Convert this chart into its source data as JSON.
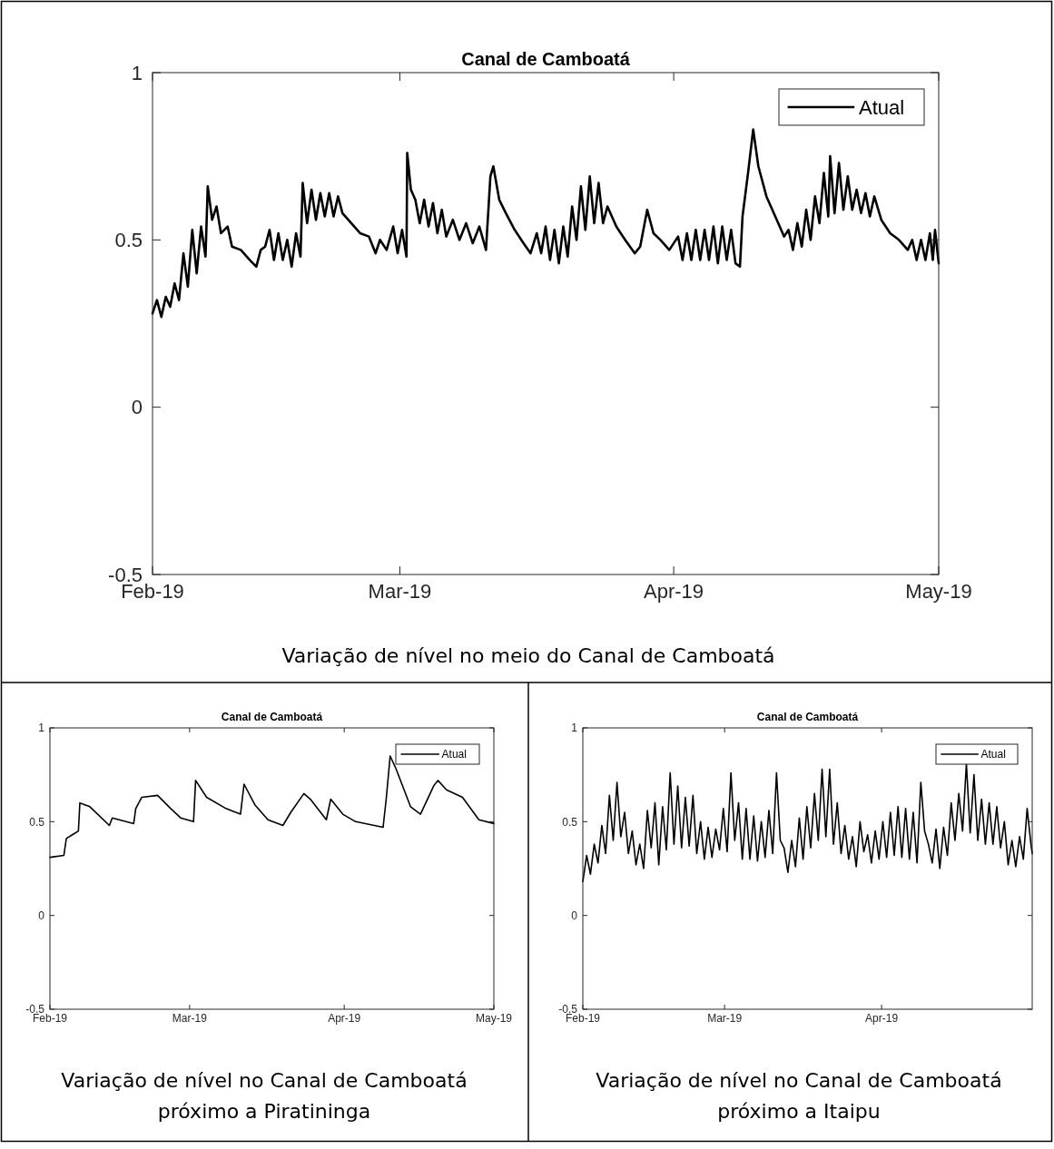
{
  "chart_data": [
    {
      "type": "line",
      "title": "Canal de Camboatá",
      "annotations": [
        "Variação de nível no meio do Canal de Camboatá"
      ],
      "xlim": [
        "2019-02-01",
        "2019-05-01"
      ],
      "xticks": [
        {
          "value": "2019-02-01",
          "label": "Feb-19"
        },
        {
          "value": "2019-03-01",
          "label": "Mar-19"
        },
        {
          "value": "2019-04-01",
          "label": "Apr-19"
        },
        {
          "value": "2019-05-01",
          "label": "May-19"
        }
      ],
      "ylim": [
        -0.5,
        1
      ],
      "yticks": [
        -0.5,
        0,
        0.5,
        1
      ],
      "legend": "top right",
      "series": [
        {
          "name": "Atual",
          "color": "#000000",
          "x": [
            "2019-02-01T00:00",
            "2019-02-01T12:00",
            "2019-02-02T00:00",
            "2019-02-02T12:00",
            "2019-02-03T00:00",
            "2019-02-03T12:00",
            "2019-02-04T00:00",
            "2019-02-04T12:00",
            "2019-02-05T00:00",
            "2019-02-05T12:00",
            "2019-02-06T00:00",
            "2019-02-06T12:00",
            "2019-02-07T00:00",
            "2019-02-07T06:00",
            "2019-02-07T18:00",
            "2019-02-08T06:00",
            "2019-02-08T18:00",
            "2019-02-09T12:00",
            "2019-02-10T00:00",
            "2019-02-11T00:00",
            "2019-02-12T00:00",
            "2019-02-12T18:00",
            "2019-02-13T06:00",
            "2019-02-13T18:00",
            "2019-02-14T06:00",
            "2019-02-14T18:00",
            "2019-02-15T06:00",
            "2019-02-15T18:00",
            "2019-02-16T06:00",
            "2019-02-16T18:00",
            "2019-02-17T06:00",
            "2019-02-17T18:00",
            "2019-02-18T00:00",
            "2019-02-18T12:00",
            "2019-02-19T00:00",
            "2019-02-19T12:00",
            "2019-02-20T00:00",
            "2019-02-20T12:00",
            "2019-02-21T00:00",
            "2019-02-21T12:00",
            "2019-02-22T00:00",
            "2019-02-22T12:00",
            "2019-02-23T12:00",
            "2019-02-24T12:00",
            "2019-02-25T12:00",
            "2019-02-26T06:00",
            "2019-02-26T18:00",
            "2019-02-27T12:00",
            "2019-02-28T06:00",
            "2019-02-28T18:00",
            "2019-03-01T06:00",
            "2019-03-01T18:00",
            "2019-03-01T20:00",
            "2019-03-02T06:00",
            "2019-03-02T18:00",
            "2019-03-03T06:00",
            "2019-03-03T18:00",
            "2019-03-04T06:00",
            "2019-03-04T18:00",
            "2019-03-05T06:00",
            "2019-03-05T18:00",
            "2019-03-06T06:00",
            "2019-03-07T00:00",
            "2019-03-07T18:00",
            "2019-03-08T12:00",
            "2019-03-09T06:00",
            "2019-03-10T00:00",
            "2019-03-10T18:00",
            "2019-03-11T06:00",
            "2019-03-11T14:00",
            "2019-03-12T06:00",
            "2019-03-13T00:00",
            "2019-03-14T00:00",
            "2019-03-15T00:00",
            "2019-03-15T19:00",
            "2019-03-16T12:00",
            "2019-03-17T00:00",
            "2019-03-17T12:00",
            "2019-03-18T00:00",
            "2019-03-18T12:00",
            "2019-03-19T00:00",
            "2019-03-19T12:00",
            "2019-03-20T00:00",
            "2019-03-20T12:00",
            "2019-03-21T00:00",
            "2019-03-21T12:00",
            "2019-03-22T00:00",
            "2019-03-22T12:00",
            "2019-03-23T00:00",
            "2019-03-23T12:00",
            "2019-03-24T00:00",
            "2019-03-24T12:00",
            "2019-03-25T12:00",
            "2019-03-26T12:00",
            "2019-03-27T14:00",
            "2019-03-28T05:00",
            "2019-03-29T00:00",
            "2019-03-29T17:00",
            "2019-03-30T12:00",
            "2019-03-31T12:00",
            "2019-04-01T12:00",
            "2019-04-02T00:00",
            "2019-04-02T12:00",
            "2019-04-03T00:00",
            "2019-04-03T12:00",
            "2019-04-04T00:00",
            "2019-04-04T12:00",
            "2019-04-05T00:00",
            "2019-04-05T12:00",
            "2019-04-06T00:00",
            "2019-04-06T12:00",
            "2019-04-07T00:00",
            "2019-04-07T12:00",
            "2019-04-08T00:00",
            "2019-04-08T12:00",
            "2019-04-08T19:00",
            "2019-04-09T10:00",
            "2019-04-10T00:00",
            "2019-04-10T14:00",
            "2019-04-11T12:00",
            "2019-04-12T12:00",
            "2019-04-13T12:00",
            "2019-04-14T00:00",
            "2019-04-14T12:00",
            "2019-04-15T00:00",
            "2019-04-15T12:00",
            "2019-04-16T00:00",
            "2019-04-16T12:00",
            "2019-04-17T00:00",
            "2019-04-17T12:00",
            "2019-04-18T00:00",
            "2019-04-18T12:00",
            "2019-04-18T17:00",
            "2019-04-19T05:00",
            "2019-04-19T17:00",
            "2019-04-20T05:00",
            "2019-04-20T17:00",
            "2019-04-21T05:00",
            "2019-04-21T17:00",
            "2019-04-22T05:00",
            "2019-04-22T17:00",
            "2019-04-23T05:00",
            "2019-04-23T17:00",
            "2019-04-24T12:00",
            "2019-04-25T12:00",
            "2019-04-26T12:00",
            "2019-04-27T12:00",
            "2019-04-28T00:00",
            "2019-04-28T12:00",
            "2019-04-29T00:00",
            "2019-04-29T12:00",
            "2019-04-30T00:00",
            "2019-04-30T08:00",
            "2019-04-30T14:00",
            "2019-05-01T00:00"
          ],
          "values": [
            0.28,
            0.32,
            0.27,
            0.33,
            0.3,
            0.37,
            0.32,
            0.46,
            0.36,
            0.53,
            0.4,
            0.54,
            0.45,
            0.66,
            0.56,
            0.6,
            0.52,
            0.54,
            0.48,
            0.47,
            0.44,
            0.42,
            0.47,
            0.48,
            0.53,
            0.44,
            0.52,
            0.44,
            0.5,
            0.42,
            0.52,
            0.45,
            0.67,
            0.55,
            0.65,
            0.56,
            0.64,
            0.57,
            0.64,
            0.57,
            0.63,
            0.58,
            0.55,
            0.52,
            0.51,
            0.46,
            0.5,
            0.47,
            0.54,
            0.46,
            0.53,
            0.45,
            0.76,
            0.65,
            0.62,
            0.55,
            0.62,
            0.54,
            0.61,
            0.52,
            0.59,
            0.51,
            0.56,
            0.5,
            0.55,
            0.49,
            0.54,
            0.47,
            0.69,
            0.72,
            0.62,
            0.58,
            0.53,
            0.49,
            0.46,
            0.52,
            0.46,
            0.54,
            0.44,
            0.53,
            0.43,
            0.54,
            0.45,
            0.6,
            0.5,
            0.66,
            0.53,
            0.69,
            0.55,
            0.67,
            0.55,
            0.6,
            0.54,
            0.5,
            0.46,
            0.48,
            0.59,
            0.52,
            0.5,
            0.47,
            0.51,
            0.44,
            0.52,
            0.44,
            0.53,
            0.44,
            0.53,
            0.44,
            0.54,
            0.43,
            0.54,
            0.44,
            0.53,
            0.43,
            0.42,
            0.57,
            0.7,
            0.83,
            0.72,
            0.63,
            0.57,
            0.51,
            0.53,
            0.47,
            0.55,
            0.48,
            0.59,
            0.5,
            0.63,
            0.55,
            0.7,
            0.57,
            0.75,
            0.58,
            0.73,
            0.59,
            0.69,
            0.59,
            0.65,
            0.58,
            0.64,
            0.57,
            0.63,
            0.56,
            0.52,
            0.5,
            0.47,
            0.5,
            0.44,
            0.5,
            0.44,
            0.52,
            0.44,
            0.53,
            0.43
          ]
        }
      ]
    },
    {
      "type": "line",
      "title": "Canal de Camboatá",
      "annotations": [
        "Variação de nível no Canal de Camboatá próximo a Piratininga"
      ],
      "xlim": [
        "2019-02-01",
        "2019-05-01"
      ],
      "xticks": [
        {
          "value": "2019-02-01",
          "label": "Feb-19"
        },
        {
          "value": "2019-03-01",
          "label": "Mar-19"
        },
        {
          "value": "2019-04-01",
          "label": "Apr-19"
        },
        {
          "value": "2019-05-01",
          "label": "May-19"
        }
      ],
      "ylim": [
        -0.5,
        1
      ],
      "yticks": [
        -0.5,
        0,
        0.5,
        1
      ],
      "legend": "top right",
      "series": [
        {
          "name": "Atual",
          "color": "#000000",
          "x": [
            "2019-02-01T00:00",
            "2019-02-03T19:00",
            "2019-02-04T07:00",
            "2019-02-05T12:00",
            "2019-02-06T17:00",
            "2019-02-07T00:00",
            "2019-02-09T00:00",
            "2019-02-12T22:00",
            "2019-02-13T12:00",
            "2019-02-17T19:00",
            "2019-02-18T05:00",
            "2019-02-19T10:00",
            "2019-02-22T14:00",
            "2019-02-25T05:00",
            "2019-02-27T05:00",
            "2019-03-01T19:00",
            "2019-03-02T05:00",
            "2019-03-04T10:00",
            "2019-03-08T07:00",
            "2019-03-11T05:00",
            "2019-03-11T22:00",
            "2019-03-14T02:00",
            "2019-03-16T17:00",
            "2019-03-19T17:00",
            "2019-03-21T07:00",
            "2019-03-23T22:00",
            "2019-03-25T05:00",
            "2019-03-28T10:00",
            "2019-03-29T07:00",
            "2019-03-31T17:00",
            "2019-04-03T07:00",
            "2019-04-08T19:00",
            "2019-04-09T10:00",
            "2019-04-10T05:00",
            "2019-04-11T10:00",
            "2019-04-14T07:00",
            "2019-04-16T07:00",
            "2019-04-18T22:00",
            "2019-04-19T19:00",
            "2019-04-21T12:00",
            "2019-04-24T17:00",
            "2019-04-28T00:00",
            "2019-05-01T00:00"
          ],
          "values": [
            0.31,
            0.32,
            0.41,
            0.43,
            0.45,
            0.6,
            0.58,
            0.48,
            0.52,
            0.49,
            0.57,
            0.63,
            0.64,
            0.57,
            0.52,
            0.5,
            0.72,
            0.63,
            0.57,
            0.54,
            0.7,
            0.59,
            0.51,
            0.48,
            0.55,
            0.65,
            0.62,
            0.51,
            0.62,
            0.54,
            0.5,
            0.47,
            0.62,
            0.85,
            0.78,
            0.58,
            0.54,
            0.69,
            0.72,
            0.67,
            0.63,
            0.51,
            0.49
          ]
        }
      ]
    },
    {
      "type": "line",
      "title": "Canal de Camboatá",
      "annotations": [
        "Variação de nível no Canal de Camboatá próximo a Itaipu"
      ],
      "xlim": [
        "2019-02-01",
        "2019-04-30T18:00"
      ],
      "xticks": [
        {
          "value": "2019-02-01",
          "label": "Feb-19"
        },
        {
          "value": "2019-03-01",
          "label": "Mar-19"
        },
        {
          "value": "2019-04-01",
          "label": "Apr-19"
        }
      ],
      "ylim": [
        -0.5,
        1
      ],
      "yticks": [
        -0.5,
        0,
        0.5,
        1
      ],
      "legend": "top right",
      "series": [
        {
          "name": "Atual",
          "color": "#000000",
          "x": [
            "2019-02-01T00:00",
            "2019-02-01T18:00",
            "2019-02-02T12:00",
            "2019-02-03T06:00",
            "2019-02-04T00:00",
            "2019-02-04T18:00",
            "2019-02-05T12:00",
            "2019-02-06T06:00",
            "2019-02-07T00:00",
            "2019-02-07T18:00",
            "2019-02-08T12:00",
            "2019-02-09T06:00",
            "2019-02-10T00:00",
            "2019-02-10T18:00",
            "2019-02-11T12:00",
            "2019-02-12T06:00",
            "2019-02-13T00:00",
            "2019-02-13T18:00",
            "2019-02-14T12:00",
            "2019-02-15T06:00",
            "2019-02-16T00:00",
            "2019-02-16T18:00",
            "2019-02-17T12:00",
            "2019-02-18T06:00",
            "2019-02-19T00:00",
            "2019-02-19T18:00",
            "2019-02-20T12:00",
            "2019-02-21T06:00",
            "2019-02-22T00:00",
            "2019-02-22T18:00",
            "2019-02-23T12:00",
            "2019-02-24T06:00",
            "2019-02-25T00:00",
            "2019-02-25T18:00",
            "2019-02-26T12:00",
            "2019-02-27T06:00",
            "2019-02-28T00:00",
            "2019-02-28T18:00",
            "2019-03-01T12:00",
            "2019-03-02T06:00",
            "2019-03-03T00:00",
            "2019-03-03T18:00",
            "2019-03-04T12:00",
            "2019-03-05T06:00",
            "2019-03-06T00:00",
            "2019-03-06T18:00",
            "2019-03-07T12:00",
            "2019-03-08T06:00",
            "2019-03-09T00:00",
            "2019-03-09T18:00",
            "2019-03-10T12:00",
            "2019-03-11T06:00",
            "2019-03-12T00:00",
            "2019-03-12T18:00",
            "2019-03-13T12:00",
            "2019-03-14T06:00",
            "2019-03-15T00:00",
            "2019-03-15T18:00",
            "2019-03-16T12:00",
            "2019-03-17T06:00",
            "2019-03-18T00:00",
            "2019-03-18T18:00",
            "2019-03-19T12:00",
            "2019-03-20T06:00",
            "2019-03-21T00:00",
            "2019-03-21T18:00",
            "2019-03-22T12:00",
            "2019-03-23T06:00",
            "2019-03-24T00:00",
            "2019-03-24T18:00",
            "2019-03-25T12:00",
            "2019-03-26T06:00",
            "2019-03-27T00:00",
            "2019-03-27T18:00",
            "2019-03-28T12:00",
            "2019-03-29T06:00",
            "2019-03-30T00:00",
            "2019-03-30T18:00",
            "2019-03-31T12:00",
            "2019-04-01T06:00",
            "2019-04-02T00:00",
            "2019-04-02T18:00",
            "2019-04-03T12:00",
            "2019-04-04T06:00",
            "2019-04-05T00:00",
            "2019-04-05T18:00",
            "2019-04-06T12:00",
            "2019-04-07T06:00",
            "2019-04-08T00:00",
            "2019-04-08T18:00",
            "2019-04-09T12:00",
            "2019-04-10T06:00",
            "2019-04-11T00:00",
            "2019-04-11T18:00",
            "2019-04-12T12:00",
            "2019-04-13T06:00",
            "2019-04-14T00:00",
            "2019-04-14T18:00",
            "2019-04-15T12:00",
            "2019-04-16T06:00",
            "2019-04-17T00:00",
            "2019-04-17T18:00",
            "2019-04-18T12:00",
            "2019-04-19T06:00",
            "2019-04-20T00:00",
            "2019-04-20T18:00",
            "2019-04-21T12:00",
            "2019-04-22T06:00",
            "2019-04-23T00:00",
            "2019-04-23T18:00",
            "2019-04-24T12:00",
            "2019-04-25T06:00",
            "2019-04-26T00:00",
            "2019-04-26T18:00",
            "2019-04-27T12:00",
            "2019-04-28T06:00",
            "2019-04-29T00:00",
            "2019-04-29T18:00",
            "2019-04-30T12:00",
            "2019-04-30T18:00"
          ],
          "values": [
            0.18,
            0.32,
            0.22,
            0.38,
            0.28,
            0.48,
            0.33,
            0.64,
            0.4,
            0.71,
            0.42,
            0.55,
            0.33,
            0.45,
            0.27,
            0.38,
            0.25,
            0.56,
            0.36,
            0.6,
            0.27,
            0.58,
            0.35,
            0.76,
            0.38,
            0.69,
            0.36,
            0.63,
            0.37,
            0.64,
            0.33,
            0.5,
            0.3,
            0.47,
            0.31,
            0.46,
            0.35,
            0.57,
            0.34,
            0.76,
            0.4,
            0.6,
            0.3,
            0.57,
            0.3,
            0.53,
            0.29,
            0.5,
            0.31,
            0.56,
            0.33,
            0.76,
            0.4,
            0.36,
            0.23,
            0.4,
            0.26,
            0.52,
            0.3,
            0.58,
            0.36,
            0.65,
            0.4,
            0.78,
            0.42,
            0.78,
            0.38,
            0.6,
            0.33,
            0.48,
            0.3,
            0.42,
            0.26,
            0.5,
            0.34,
            0.43,
            0.28,
            0.45,
            0.3,
            0.5,
            0.31,
            0.55,
            0.32,
            0.58,
            0.31,
            0.57,
            0.3,
            0.55,
            0.28,
            0.71,
            0.45,
            0.38,
            0.28,
            0.46,
            0.25,
            0.47,
            0.32,
            0.6,
            0.4,
            0.65,
            0.45,
            0.81,
            0.44,
            0.75,
            0.4,
            0.62,
            0.38,
            0.6,
            0.38,
            0.58,
            0.36,
            0.5,
            0.27,
            0.4,
            0.26,
            0.42,
            0.3,
            0.57,
            0.38,
            0.33
          ]
        }
      ]
    }
  ]
}
